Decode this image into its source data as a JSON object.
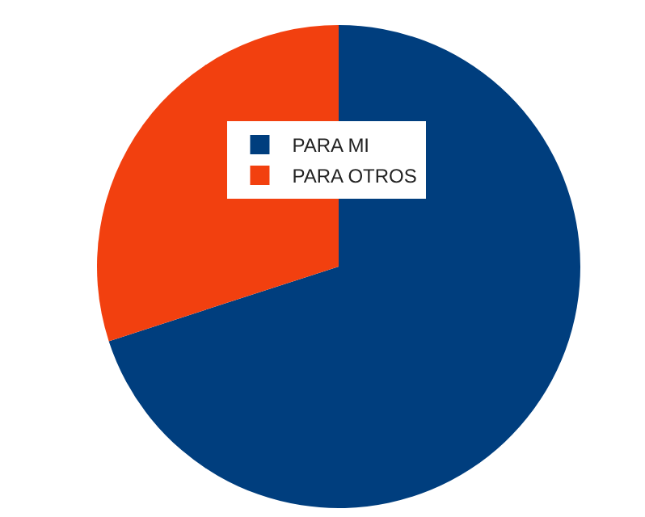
{
  "chart_data": {
    "type": "pie",
    "categories": [
      "PARA MI",
      "PARA OTROS"
    ],
    "values": [
      70,
      30
    ],
    "colors": [
      "#003e7e",
      "#f2400f"
    ],
    "legend": "top left"
  }
}
